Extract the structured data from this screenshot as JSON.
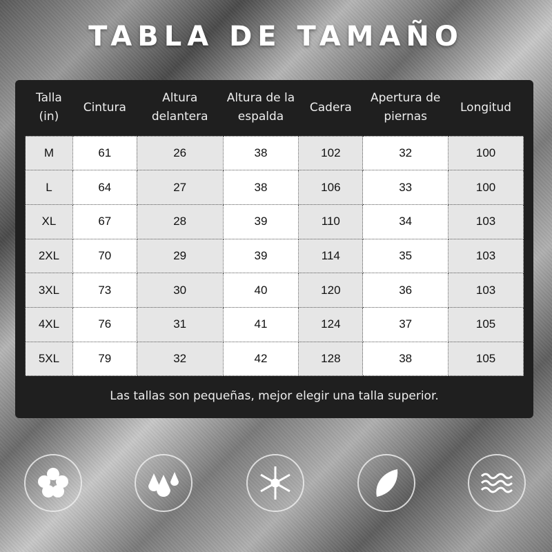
{
  "title": "TABLA DE TAMAÑO",
  "table": {
    "headers": [
      "Talla\n(in)",
      "Cintura",
      "Altura\ndelantera",
      "Altura de la\nespalda",
      "Cadera",
      "Apertura de\npiernas",
      "Longitud"
    ],
    "rows": [
      [
        "M",
        "61",
        "26",
        "38",
        "102",
        "32",
        "100"
      ],
      [
        "L",
        "64",
        "27",
        "38",
        "106",
        "33",
        "100"
      ],
      [
        "XL",
        "67",
        "28",
        "39",
        "110",
        "34",
        "103"
      ],
      [
        "2XL",
        "70",
        "29",
        "39",
        "114",
        "35",
        "103"
      ],
      [
        "3XL",
        "73",
        "30",
        "40",
        "120",
        "36",
        "103"
      ],
      [
        "4XL",
        "76",
        "31",
        "41",
        "124",
        "37",
        "105"
      ],
      [
        "5XL",
        "79",
        "32",
        "42",
        "128",
        "38",
        "105"
      ]
    ]
  },
  "note": "Las tallas son pequeñas, mejor elegir una talla superior.",
  "icons": [
    "clover-icon",
    "water-drops-icon",
    "snowflake-icon",
    "leaf-icon",
    "waves-icon"
  ]
}
